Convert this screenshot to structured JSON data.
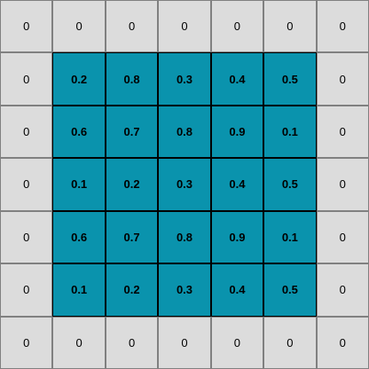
{
  "grid": {
    "rows": 7,
    "cols": 7,
    "colors": {
      "padding_cell": "#dcdcdc",
      "input_cell": "#0a93ad",
      "grid_line": "#808080",
      "input_border": "#000000"
    },
    "values": [
      [
        "0",
        "0",
        "0",
        "0",
        "0",
        "0",
        "0"
      ],
      [
        "0",
        "0.2",
        "0.8",
        "0.3",
        "0.4",
        "0.5",
        "0"
      ],
      [
        "0",
        "0.6",
        "0.7",
        "0.8",
        "0.9",
        "0.1",
        "0"
      ],
      [
        "0",
        "0.1",
        "0.2",
        "0.3",
        "0.4",
        "0.5",
        "0"
      ],
      [
        "0",
        "0.6",
        "0.7",
        "0.8",
        "0.9",
        "0.1",
        "0"
      ],
      [
        "0",
        "0.1",
        "0.2",
        "0.3",
        "0.4",
        "0.5",
        "0"
      ],
      [
        "0",
        "0",
        "0",
        "0",
        "0",
        "0",
        "0"
      ]
    ]
  }
}
